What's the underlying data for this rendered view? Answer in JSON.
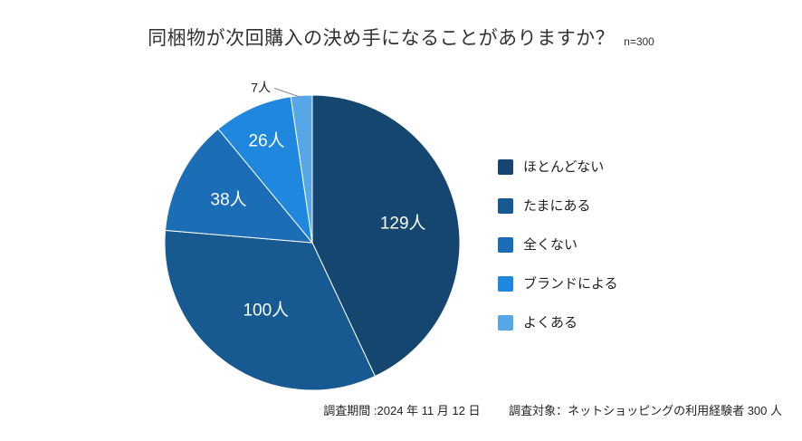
{
  "page": {
    "title": "同梱物が次回購入の決め手になることがありますか？",
    "sample_size": "n=300",
    "footnote": {
      "period": "調査期間 :2024 年 11 月 12 日",
      "target": "調査対象：ネットショッピングの利用経験者 300 人"
    }
  },
  "chart_data": {
    "type": "pie",
    "title": "同梱物が次回購入の決め手になることがありますか？",
    "n": 300,
    "categories": [
      "ほとんどない",
      "たまにある",
      "全くない",
      "ブランドによる",
      "よくある"
    ],
    "values": [
      129,
      100,
      38,
      26,
      7
    ],
    "data_labels": [
      "129人",
      "100人",
      "38人",
      "26人",
      "7人"
    ],
    "colors": [
      "#144670",
      "#175A91",
      "#1B6DB5",
      "#1F88DE",
      "#55A7E8"
    ],
    "start_angle": "top",
    "direction": "clockwise",
    "legend_position": "right",
    "label_radius_fraction": [
      0.63,
      0.55,
      0.64,
      0.76,
      null
    ]
  }
}
